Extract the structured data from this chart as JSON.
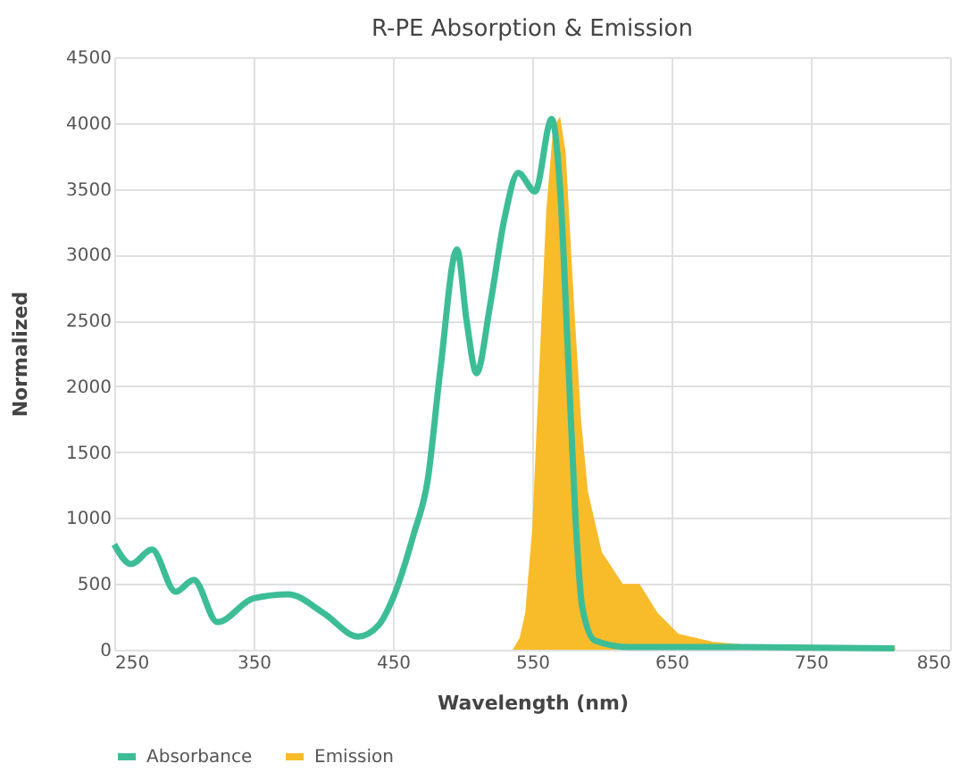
{
  "chart_data": {
    "type": "line",
    "title": "R-PE Absorption & Emission",
    "xlabel": "Wavelength (nm)",
    "ylabel": "Normalized",
    "xlim": [
      250,
      850
    ],
    "xticks": [
      250,
      350,
      450,
      550,
      650,
      750,
      850
    ],
    "ylim": [
      0,
      4500
    ],
    "yticks": [
      0,
      500,
      1000,
      1500,
      2000,
      2500,
      3000,
      3500,
      4000,
      4500
    ],
    "grid": true,
    "legend": "bottom",
    "line_style": "solid",
    "marker": "none",
    "series": [
      {
        "name": "Absorbance",
        "color": "#3dbd96",
        "x": [
          250,
          262,
          277,
          294,
          307,
          324,
          350,
          375,
          400,
          425,
          440,
          450,
          465,
          475,
          484,
          496,
          503,
          510,
          520,
          530,
          540,
          552,
          564,
          570,
          576,
          581,
          586,
          595,
          620,
          700,
          810
        ],
        "values": [
          800,
          650,
          760,
          440,
          530,
          210,
          390,
          420,
          280,
          100,
          190,
          390,
          880,
          1290,
          2120,
          3040,
          2490,
          2100,
          2630,
          3270,
          3620,
          3480,
          4030,
          3500,
          2170,
          1010,
          320,
          70,
          20,
          20,
          10
        ]
      },
      {
        "name": "Emission",
        "type": "area",
        "color": "#f8bb2a",
        "x": [
          536,
          541,
          545,
          550,
          555,
          560,
          565,
          570,
          574,
          580,
          585,
          590,
          600,
          615,
          627,
          640,
          655,
          680,
          700,
          750,
          810,
          811
        ],
        "values": [
          0,
          90,
          280,
          920,
          2120,
          3320,
          3960,
          4050,
          3780,
          2630,
          1750,
          1200,
          740,
          500,
          500,
          280,
          120,
          60,
          40,
          30,
          30,
          0
        ]
      }
    ]
  }
}
